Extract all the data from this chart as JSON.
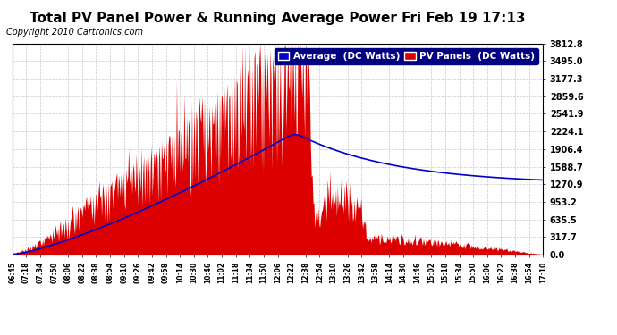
{
  "title": "Total PV Panel Power & Running Average Power Fri Feb 19 17:13",
  "copyright": "Copyright 2010 Cartronics.com",
  "legend_labels": [
    "Average  (DC Watts)",
    "PV Panels  (DC Watts)"
  ],
  "legend_colors": [
    "#0000cc",
    "#dd0000"
  ],
  "yticks": [
    0.0,
    317.7,
    635.5,
    953.2,
    1270.9,
    1588.7,
    1906.4,
    2224.1,
    2541.9,
    2859.6,
    3177.3,
    3495.0,
    3812.8
  ],
  "ymax": 3812.8,
  "xtick_labels": [
    "06:45",
    "07:18",
    "07:34",
    "07:50",
    "08:06",
    "08:22",
    "08:38",
    "08:54",
    "09:10",
    "09:26",
    "09:42",
    "09:58",
    "10:14",
    "10:30",
    "10:46",
    "11:02",
    "11:18",
    "11:34",
    "11:50",
    "12:06",
    "12:22",
    "12:38",
    "12:54",
    "13:10",
    "13:26",
    "13:42",
    "13:58",
    "14:14",
    "14:30",
    "14:46",
    "15:02",
    "15:18",
    "15:34",
    "15:50",
    "16:06",
    "16:22",
    "16:38",
    "16:54",
    "17:10"
  ],
  "bg_color": "#ffffff",
  "plot_bg_color": "#ffffff",
  "grid_color": "#bbbbbb",
  "fill_color": "#dd0000",
  "line_color": "#0000cc",
  "title_fontsize": 11,
  "copyright_fontsize": 7
}
